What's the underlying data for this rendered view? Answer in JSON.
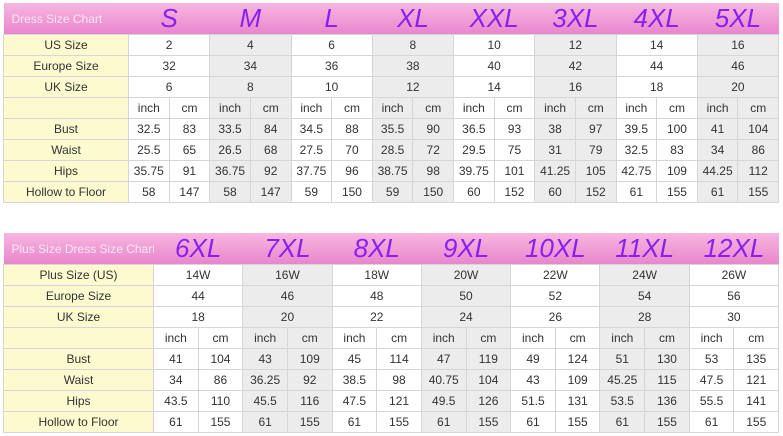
{
  "table1": {
    "title": "Dress Size Chart",
    "sizes": [
      "S",
      "M",
      "L",
      "XL",
      "XXL",
      "3XL",
      "4XL",
      "5XL"
    ],
    "rows_single": [
      {
        "label": "US Size",
        "values": [
          "2",
          "4",
          "6",
          "8",
          "10",
          "12",
          "14",
          "16"
        ]
      },
      {
        "label": "Europe Size",
        "values": [
          "32",
          "34",
          "36",
          "38",
          "40",
          "42",
          "44",
          "46"
        ]
      },
      {
        "label": "UK Size",
        "values": [
          "6",
          "8",
          "10",
          "12",
          "14",
          "16",
          "18",
          "20"
        ]
      }
    ],
    "unit_labels": {
      "inch": "inch",
      "cm": "cm"
    },
    "rows_measure": [
      {
        "label": "Bust",
        "values": [
          "32.5",
          "83",
          "33.5",
          "84",
          "34.5",
          "88",
          "35.5",
          "90",
          "36.5",
          "93",
          "38",
          "97",
          "39.5",
          "100",
          "41",
          "104"
        ]
      },
      {
        "label": "Waist",
        "values": [
          "25.5",
          "65",
          "26.5",
          "68",
          "27.5",
          "70",
          "28.5",
          "72",
          "29.5",
          "75",
          "31",
          "79",
          "32.5",
          "83",
          "34",
          "86"
        ]
      },
      {
        "label": "Hips",
        "values": [
          "35.75",
          "91",
          "36.75",
          "92",
          "37.75",
          "96",
          "38.75",
          "98",
          "39.75",
          "101",
          "41.25",
          "105",
          "42.75",
          "109",
          "44.25",
          "112"
        ]
      },
      {
        "label": "Hollow to Floor",
        "values": [
          "58",
          "147",
          "58",
          "147",
          "59",
          "150",
          "59",
          "150",
          "60",
          "152",
          "60",
          "152",
          "61",
          "155",
          "61",
          "155"
        ]
      }
    ]
  },
  "table2": {
    "title": "Plus Size Dress Size Chart",
    "sizes": [
      "6XL",
      "7XL",
      "8XL",
      "9XL",
      "10XL",
      "11XL",
      "12XL"
    ],
    "rows_single": [
      {
        "label": "Plus Size (US)",
        "values": [
          "14W",
          "16W",
          "18W",
          "20W",
          "22W",
          "24W",
          "26W"
        ]
      },
      {
        "label": "Europe Size",
        "values": [
          "44",
          "46",
          "48",
          "50",
          "52",
          "54",
          "56"
        ]
      },
      {
        "label": "UK Size",
        "values": [
          "18",
          "20",
          "22",
          "24",
          "26",
          "28",
          "30"
        ]
      }
    ],
    "unit_labels": {
      "inch": "inch",
      "cm": "cm"
    },
    "rows_measure": [
      {
        "label": "Bust",
        "values": [
          "41",
          "104",
          "43",
          "109",
          "45",
          "114",
          "47",
          "119",
          "49",
          "124",
          "51",
          "130",
          "53",
          "135"
        ]
      },
      {
        "label": "Waist",
        "values": [
          "34",
          "86",
          "36.25",
          "92",
          "38.5",
          "98",
          "40.75",
          "104",
          "43",
          "109",
          "45.25",
          "115",
          "47.5",
          "121"
        ]
      },
      {
        "label": "Hips",
        "values": [
          "43.5",
          "110",
          "45.5",
          "116",
          "47.5",
          "121",
          "49.5",
          "126",
          "51.5",
          "131",
          "53.5",
          "136",
          "55.5",
          "141"
        ]
      },
      {
        "label": "Hollow to Floor",
        "values": [
          "61",
          "155",
          "61",
          "155",
          "61",
          "155",
          "61",
          "155",
          "61",
          "155",
          "61",
          "155",
          "61",
          "155"
        ]
      }
    ]
  },
  "colors": {
    "header_pink": "#e986cd",
    "size_purple": "#8a1ff0",
    "label_yellow": "#fdfad0",
    "alt_gray": "#ececec"
  }
}
